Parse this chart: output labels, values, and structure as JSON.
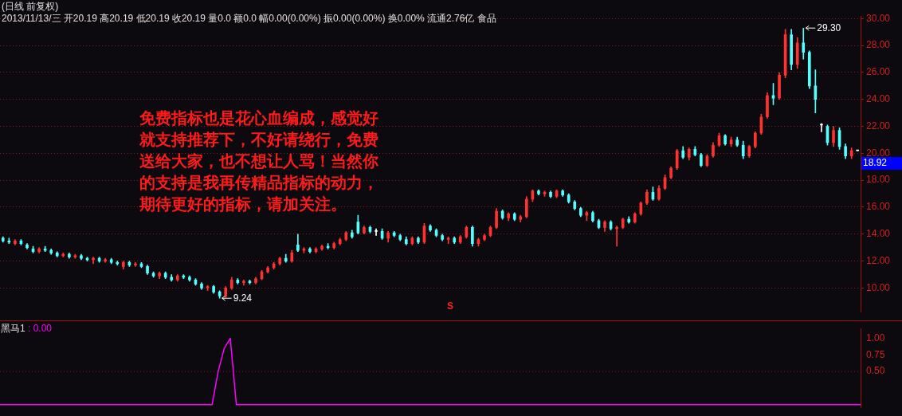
{
  "chart_data": [
    {
      "type": "candlestick",
      "title": "(日线 前复权)",
      "subtitle": "2013/11/13/三 开20.19 高20.19 低20.19 收20.19 量0.0 额0.0 幅0.00(0.00%) 振0.00(0.00%) 换0.00% 流通2.76亿 食品",
      "categories": [
        null,
        null,
        null,
        null,
        null,
        null,
        null,
        null,
        null,
        null,
        null,
        null,
        null,
        null,
        null,
        null,
        null,
        null,
        null,
        null,
        null,
        null,
        null,
        null,
        null,
        null,
        null,
        null,
        null,
        null,
        null,
        null,
        null,
        null,
        null,
        null,
        null,
        null,
        null,
        null,
        null,
        null,
        null,
        null,
        null,
        null,
        null,
        null,
        null,
        null,
        null,
        null,
        null,
        null,
        null,
        null,
        null,
        null,
        null,
        null,
        null,
        null,
        null,
        null,
        null,
        null,
        null,
        null,
        null,
        null,
        null,
        null,
        null,
        null,
        null,
        null,
        null,
        null,
        null,
        null,
        null,
        null,
        null,
        null,
        null,
        null,
        null,
        null,
        null,
        null,
        null,
        null,
        null,
        null,
        null,
        null,
        null,
        null,
        null,
        null,
        null,
        null,
        null,
        null,
        null,
        null,
        null,
        null,
        null,
        null,
        null,
        null,
        null,
        null,
        null,
        null,
        null,
        null,
        null,
        null,
        null,
        null,
        null,
        null,
        null,
        null,
        null,
        null,
        null,
        null,
        null,
        null,
        null,
        null,
        null,
        null,
        null,
        null,
        null,
        null,
        null,
        null,
        null
      ],
      "ohlc": [
        [
          13.7,
          13.8,
          13.4,
          13.5
        ],
        [
          13.5,
          13.7,
          13.3,
          13.4
        ],
        [
          13.3,
          13.6,
          13.2,
          13.5
        ],
        [
          13.5,
          13.6,
          13.2,
          13.3
        ],
        [
          13.2,
          13.3,
          12.9,
          13.0
        ],
        [
          12.9,
          13.1,
          12.6,
          12.7
        ],
        [
          12.7,
          13.0,
          12.6,
          12.9
        ],
        [
          12.9,
          13.1,
          12.7,
          12.8
        ],
        [
          12.8,
          12.9,
          12.5,
          12.6
        ],
        [
          12.6,
          12.7,
          12.3,
          12.4
        ],
        [
          12.4,
          12.6,
          12.3,
          12.5
        ],
        [
          12.5,
          12.6,
          12.2,
          12.3
        ],
        [
          12.3,
          12.5,
          12.2,
          12.4
        ],
        [
          12.4,
          12.5,
          12.1,
          12.2
        ],
        [
          12.2,
          12.3,
          12.0,
          12.1
        ],
        [
          12.1,
          12.3,
          11.8,
          12.2
        ],
        [
          12.2,
          12.3,
          11.9,
          12.0
        ],
        [
          12.0,
          12.2,
          11.9,
          12.1
        ],
        [
          12.1,
          12.2,
          11.8,
          11.9
        ],
        [
          11.9,
          12.0,
          11.7,
          11.8
        ],
        [
          11.6,
          12.0,
          11.4,
          11.9
        ],
        [
          11.9,
          12.0,
          11.6,
          11.7
        ],
        [
          11.7,
          11.9,
          11.6,
          11.8
        ],
        [
          11.8,
          11.9,
          11.5,
          11.6
        ],
        [
          11.6,
          11.7,
          11.0,
          11.1
        ],
        [
          11.1,
          11.2,
          10.8,
          10.9
        ],
        [
          10.9,
          11.2,
          10.7,
          11.1
        ],
        [
          11.1,
          11.2,
          10.7,
          10.8
        ],
        [
          10.8,
          11.0,
          10.5,
          10.6
        ],
        [
          10.6,
          11.0,
          10.5,
          10.9
        ],
        [
          10.9,
          11.0,
          10.7,
          10.8
        ],
        [
          10.8,
          10.9,
          10.5,
          10.6
        ],
        [
          10.6,
          10.7,
          10.2,
          10.3
        ],
        [
          10.3,
          10.4,
          9.9,
          10.0
        ],
        [
          10.0,
          10.2,
          9.8,
          10.1
        ],
        [
          10.1,
          10.2,
          9.6,
          9.7
        ],
        [
          9.7,
          9.8,
          9.24,
          9.4
        ],
        [
          9.4,
          10.1,
          9.3,
          10.0
        ],
        [
          10.0,
          10.8,
          9.9,
          10.6
        ],
        [
          10.6,
          10.7,
          10.3,
          10.4
        ],
        [
          10.4,
          10.6,
          10.2,
          10.5
        ],
        [
          10.5,
          10.6,
          10.3,
          10.4
        ],
        [
          10.4,
          10.8,
          10.3,
          10.7
        ],
        [
          10.7,
          11.3,
          10.6,
          11.2
        ],
        [
          11.2,
          11.6,
          11.1,
          11.5
        ],
        [
          11.5,
          11.9,
          11.4,
          11.8
        ],
        [
          11.8,
          12.3,
          11.7,
          12.2
        ],
        [
          12.2,
          12.5,
          11.9,
          12.0
        ],
        [
          12.0,
          12.8,
          11.9,
          12.6
        ],
        [
          13.2,
          14.0,
          12.7,
          12.8
        ],
        [
          12.8,
          13.0,
          12.6,
          12.9
        ],
        [
          12.9,
          13.0,
          12.6,
          12.7
        ],
        [
          12.7,
          13.0,
          12.6,
          12.9
        ],
        [
          12.9,
          13.2,
          12.8,
          13.1
        ],
        [
          13.1,
          13.3,
          12.9,
          13.0
        ],
        [
          13.0,
          13.4,
          12.9,
          13.3
        ],
        [
          13.3,
          13.7,
          13.2,
          13.6
        ],
        [
          13.6,
          14.2,
          13.5,
          14.1
        ],
        [
          14.1,
          14.3,
          13.7,
          13.8
        ],
        [
          14.9,
          15.4,
          14.0,
          14.1
        ],
        [
          14.1,
          14.6,
          14.0,
          14.5
        ],
        [
          14.5,
          14.6,
          14.1,
          14.2
        ],
        [
          14.2,
          14.4,
          13.9,
          14.2
        ],
        [
          14.2,
          14.4,
          13.6,
          13.7
        ],
        [
          13.7,
          14.2,
          13.4,
          14.1
        ],
        [
          14.1,
          14.2,
          13.8,
          13.9
        ],
        [
          13.9,
          14.0,
          13.5,
          13.6
        ],
        [
          13.6,
          13.8,
          13.2,
          13.3
        ],
        [
          13.3,
          13.8,
          13.2,
          13.7
        ],
        [
          13.7,
          13.8,
          13.3,
          13.4
        ],
        [
          13.4,
          14.8,
          13.3,
          14.6
        ],
        [
          14.6,
          14.7,
          14.2,
          14.3
        ],
        [
          14.3,
          14.4,
          13.8,
          13.9
        ],
        [
          13.9,
          14.0,
          13.5,
          13.6
        ],
        [
          13.6,
          13.8,
          13.3,
          13.7
        ],
        [
          13.7,
          13.8,
          13.3,
          13.4
        ],
        [
          13.4,
          13.9,
          13.3,
          13.8
        ],
        [
          13.8,
          14.6,
          13.7,
          14.5
        ],
        [
          14.5,
          14.6,
          13.1,
          13.3
        ],
        [
          13.3,
          13.7,
          13.1,
          13.6
        ],
        [
          13.6,
          14.0,
          13.5,
          13.9
        ],
        [
          13.9,
          14.6,
          13.8,
          14.5
        ],
        [
          14.5,
          15.9,
          14.4,
          15.7
        ],
        [
          15.7,
          15.8,
          15.1,
          15.2
        ],
        [
          15.2,
          15.6,
          15.0,
          15.5
        ],
        [
          15.5,
          15.6,
          15.0,
          15.1
        ],
        [
          15.1,
          15.4,
          14.9,
          15.3
        ],
        [
          15.3,
          16.8,
          15.2,
          16.6
        ],
        [
          16.6,
          17.3,
          16.4,
          17.2
        ],
        [
          17.2,
          17.3,
          16.9,
          17.0
        ],
        [
          17.0,
          17.2,
          16.8,
          17.1
        ],
        [
          17.1,
          17.2,
          16.7,
          16.8
        ],
        [
          16.8,
          17.3,
          16.7,
          17.2
        ],
        [
          17.2,
          17.3,
          16.8,
          16.9
        ],
        [
          16.9,
          17.0,
          16.3,
          16.4
        ],
        [
          16.4,
          16.5,
          15.8,
          15.9
        ],
        [
          15.9,
          16.0,
          15.3,
          15.4
        ],
        [
          15.4,
          15.7,
          15.0,
          15.6
        ],
        [
          15.6,
          15.7,
          14.9,
          15.0
        ],
        [
          15.0,
          15.1,
          14.4,
          14.5
        ],
        [
          14.5,
          15.0,
          14.2,
          14.9
        ],
        [
          14.9,
          15.0,
          14.3,
          14.4
        ],
        [
          14.4,
          14.6,
          13.1,
          14.5
        ],
        [
          14.5,
          15.2,
          14.4,
          15.1
        ],
        [
          15.1,
          15.3,
          14.8,
          14.9
        ],
        [
          14.9,
          15.6,
          14.8,
          15.5
        ],
        [
          15.5,
          16.4,
          15.4,
          16.3
        ],
        [
          16.3,
          17.3,
          16.2,
          17.1
        ],
        [
          17.1,
          17.5,
          16.5,
          16.6
        ],
        [
          16.6,
          17.6,
          16.5,
          17.4
        ],
        [
          17.4,
          18.4,
          17.3,
          18.2
        ],
        [
          18.2,
          19.0,
          18.1,
          18.9
        ],
        [
          18.9,
          20.3,
          18.8,
          20.2
        ],
        [
          20.2,
          20.5,
          19.6,
          19.7
        ],
        [
          19.7,
          20.4,
          19.5,
          20.3
        ],
        [
          20.3,
          20.5,
          19.8,
          19.9
        ],
        [
          19.9,
          20.0,
          19.0,
          19.1
        ],
        [
          19.1,
          19.9,
          19.0,
          19.8
        ],
        [
          19.8,
          20.8,
          19.7,
          20.6
        ],
        [
          20.6,
          21.5,
          20.5,
          21.3
        ],
        [
          21.3,
          21.4,
          20.6,
          20.7
        ],
        [
          20.7,
          21.2,
          20.5,
          21.0
        ],
        [
          21.0,
          21.2,
          20.5,
          20.6
        ],
        [
          20.6,
          20.9,
          19.6,
          19.8
        ],
        [
          19.8,
          20.6,
          19.7,
          20.5
        ],
        [
          20.5,
          21.6,
          20.4,
          21.5
        ],
        [
          21.5,
          22.9,
          21.4,
          22.7
        ],
        [
          22.7,
          24.5,
          22.6,
          24.3
        ],
        [
          24.3,
          25.2,
          23.6,
          24.1
        ],
        [
          24.1,
          26.0,
          24.0,
          25.8
        ],
        [
          25.8,
          29.2,
          25.6,
          28.8
        ],
        [
          28.8,
          29.2,
          26.2,
          26.6
        ],
        [
          26.6,
          28.6,
          26.3,
          28.2
        ],
        [
          28.2,
          29.3,
          27.0,
          27.5
        ],
        [
          27.5,
          27.6,
          24.8,
          25.0
        ],
        [
          25.0,
          26.2,
          23.0,
          24.0
        ],
        [
          22.1,
          22.2,
          21.6,
          22.1
        ],
        [
          22.0,
          22.1,
          20.6,
          20.8
        ],
        [
          20.8,
          22.0,
          20.5,
          21.7
        ],
        [
          21.7,
          21.9,
          20.3,
          20.5
        ],
        [
          20.5,
          20.7,
          19.6,
          19.8
        ],
        [
          19.8,
          20.4,
          19.6,
          20.2
        ],
        [
          20.19,
          20.19,
          20.19,
          20.19
        ]
      ],
      "colors": [
        "#54ffff",
        "#54ffff",
        "#ff3232",
        "#54ffff",
        "#54ffff",
        "#54ffff",
        "#ff3232",
        "#54ffff",
        "#54ffff",
        "#54ffff",
        "#ff3232",
        "#54ffff",
        "#ff3232",
        "#54ffff",
        "#54ffff",
        "#ff3232",
        "#54ffff",
        "#ff3232",
        "#54ffff",
        "#54ffff",
        "#ff3232",
        "#54ffff",
        "#ff3232",
        "#54ffff",
        "#54ffff",
        "#54ffff",
        "#ff3232",
        "#54ffff",
        "#54ffff",
        "#ff3232",
        "#54ffff",
        "#54ffff",
        "#54ffff",
        "#54ffff",
        "#ff3232",
        "#54ffff",
        "#54ffff",
        "#ff3232",
        "#ff3232",
        "#54ffff",
        "#ff3232",
        "#54ffff",
        "#ff3232",
        "#ff3232",
        "#ff3232",
        "#ff3232",
        "#ff3232",
        "#54ffff",
        "#ff3232",
        "#54ffff",
        "#ff3232",
        "#54ffff",
        "#ff3232",
        "#ff3232",
        "#54ffff",
        "#ff3232",
        "#ff3232",
        "#ff3232",
        "#54ffff",
        "#54ffff",
        "#ff3232",
        "#54ffff",
        "#ffffff",
        "#54ffff",
        "#ff3232",
        "#54ffff",
        "#54ffff",
        "#54ffff",
        "#ff3232",
        "#54ffff",
        "#ff3232",
        "#54ffff",
        "#54ffff",
        "#54ffff",
        "#ff3232",
        "#54ffff",
        "#ff3232",
        "#ff3232",
        "#54ffff",
        "#ff3232",
        "#ff3232",
        "#ff3232",
        "#ff3232",
        "#54ffff",
        "#ff3232",
        "#54ffff",
        "#ff3232",
        "#ff3232",
        "#ff3232",
        "#54ffff",
        "#ff3232",
        "#54ffff",
        "#ff3232",
        "#54ffff",
        "#54ffff",
        "#54ffff",
        "#54ffff",
        "#ff3232",
        "#54ffff",
        "#54ffff",
        "#ff3232",
        "#54ffff",
        "#ff3232",
        "#ff3232",
        "#54ffff",
        "#ff3232",
        "#ff3232",
        "#ff3232",
        "#54ffff",
        "#ff3232",
        "#ff3232",
        "#ff3232",
        "#ff3232",
        "#54ffff",
        "#ff3232",
        "#54ffff",
        "#54ffff",
        "#ff3232",
        "#ff3232",
        "#ff3232",
        "#54ffff",
        "#ff3232",
        "#54ffff",
        "#54ffff",
        "#ff3232",
        "#ff3232",
        "#ff3232",
        "#ff3232",
        "#54ffff",
        "#ff3232",
        "#ff3232",
        "#54ffff",
        "#ff3232",
        "#54ffff",
        "#54ffff",
        "#54ffff",
        "#ffffff",
        "#54ffff",
        "#ff3232",
        "#54ffff",
        "#54ffff",
        "#ff3232",
        "#ffffff"
      ],
      "ylim": [
        8.2,
        30.2
      ],
      "yticks": [
        {
          "value": 10,
          "label": "10.00"
        },
        {
          "value": 12,
          "label": "12.00"
        },
        {
          "value": 14,
          "label": "14.00"
        },
        {
          "value": 16,
          "label": "16.00"
        },
        {
          "value": 18,
          "label": "18.00"
        },
        {
          "value": 20,
          "label": "20.00"
        },
        {
          "value": 22,
          "label": "22.00"
        },
        {
          "value": 24,
          "label": "24.00"
        },
        {
          "value": 26,
          "label": "26.00"
        },
        {
          "value": 28,
          "label": "28.00"
        },
        {
          "value": 30,
          "label": "30.00"
        }
      ],
      "grid": "y",
      "tick_labels": "y",
      "annotations": [
        "免费指标也是花心血编成，感觉好就支持推荐下，不好请绕行，免费送给大家，也不想让人骂！当然你的支持是我再传精品指标的动力，期待更好的指标，请加关注。",
        "S",
        "29.30",
        "9.24",
        "18.92"
      ]
    },
    {
      "type": "line",
      "title": "黑马1",
      "annotations": [
        ": 0.00"
      ],
      "categories": [
        null,
        null,
        null,
        null,
        null,
        null,
        null,
        null,
        null,
        null,
        null,
        null,
        null,
        null,
        null,
        null,
        null,
        null,
        null,
        null,
        null,
        null,
        null,
        null,
        null,
        null,
        null,
        null,
        null,
        null,
        null,
        null,
        null,
        null,
        null,
        null,
        null,
        null,
        null,
        null,
        null,
        null,
        null,
        null,
        null,
        null,
        null,
        null,
        null,
        null,
        null,
        null,
        null,
        null,
        null,
        null,
        null,
        null,
        null,
        null,
        null,
        null,
        null,
        null,
        null,
        null,
        null,
        null,
        null,
        null,
        null,
        null,
        null,
        null,
        null,
        null,
        null,
        null,
        null,
        null,
        null,
        null,
        null,
        null,
        null,
        null,
        null,
        null,
        null,
        null,
        null,
        null,
        null,
        null,
        null,
        null,
        null,
        null,
        null,
        null,
        null,
        null,
        null,
        null,
        null,
        null,
        null,
        null,
        null,
        null,
        null,
        null,
        null,
        null,
        null,
        null,
        null,
        null,
        null,
        null,
        null,
        null,
        null,
        null,
        null,
        null,
        null,
        null,
        null,
        null,
        null,
        null,
        null,
        null,
        null,
        null,
        null,
        null,
        null,
        null,
        null,
        null,
        null
      ],
      "series": [
        {
          "color": "#ff00ff",
          "values": [
            0,
            0,
            0,
            0,
            0,
            0,
            0,
            0,
            0,
            0,
            0,
            0,
            0,
            0,
            0,
            0,
            0,
            0,
            0,
            0,
            0,
            0,
            0,
            0,
            0,
            0,
            0,
            0,
            0,
            0,
            0,
            0,
            0,
            0,
            0,
            0,
            0.5,
            0.85,
            1,
            0,
            0,
            0,
            0,
            0,
            0,
            0,
            0,
            0,
            0,
            0,
            0,
            0,
            0,
            0,
            0,
            0,
            0,
            0,
            0,
            0,
            0,
            0,
            0,
            0,
            0,
            0,
            0,
            0,
            0,
            0,
            0,
            0,
            0,
            0,
            0,
            0,
            0,
            0,
            0,
            0,
            0,
            0,
            0,
            0,
            0,
            0,
            0,
            0,
            0,
            0,
            0,
            0,
            0,
            0,
            0,
            0,
            0,
            0,
            0,
            0,
            0,
            0,
            0,
            0,
            0,
            0,
            0,
            0,
            0,
            0,
            0,
            0,
            0,
            0,
            0,
            0,
            0,
            0,
            0,
            0,
            0,
            0,
            0,
            0,
            0,
            0,
            0,
            0,
            0,
            0,
            0,
            0,
            0,
            0,
            0,
            0,
            0,
            0,
            0,
            0,
            0,
            0,
            0
          ]
        }
      ],
      "ylim": [
        -0.05,
        1.15
      ],
      "yticks": [
        {
          "value": 0.5,
          "label": "0.50"
        },
        {
          "value": 0.75,
          "label": "0.75"
        },
        {
          "value": 1,
          "label": "1.00"
        }
      ],
      "tick_labels": "y",
      "ref_lines": [
        {
          "axis": "y",
          "value": 0.5,
          "color": "#8b1a1a",
          "line_style": "dotted"
        }
      ]
    }
  ]
}
